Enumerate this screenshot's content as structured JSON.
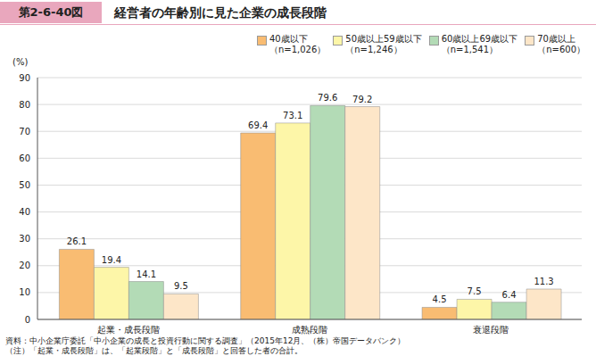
{
  "chart_data": {
    "type": "bar",
    "title": "経営者の年齢別に見た企業の成長段階",
    "annotations": {
      "figure": "第2-6-40図",
      "source": "資料：中小企業庁委託「中小企業の成長と投資行動に関する調査」（2015年12月、（株）帝国データバンク）",
      "note": "（注）「起業・成長段階」は、「起業段階」と「成長段階」と回答した者の合計。"
    },
    "y_label": "(%)",
    "categories": [
      "起業・成長段階",
      "成熟段階",
      "衰退段階"
    ],
    "series": [
      {
        "name": "40歳以下（n=1,026）",
        "color": "#f9bc72",
        "values": [
          26.1,
          69.4,
          4.5
        ]
      },
      {
        "name": "50歳以上59歳以下（n=1,246）",
        "color": "#fdf6a8",
        "values": [
          19.4,
          73.1,
          7.5
        ]
      },
      {
        "name": "60歳以上69歳以下（n=1,541）",
        "color": "#b3dbb6",
        "values": [
          14.1,
          79.6,
          6.4
        ]
      },
      {
        "name": "70歳以上（n=600）",
        "color": "#fde6c8",
        "values": [
          9.5,
          79.2,
          11.3
        ]
      }
    ],
    "ylim": [
      0,
      90
    ],
    "yticks": [
      0,
      10,
      20,
      30,
      40,
      50,
      60,
      70,
      80,
      90
    ],
    "grid": true,
    "data_labels": true,
    "legend": "top-right"
  }
}
